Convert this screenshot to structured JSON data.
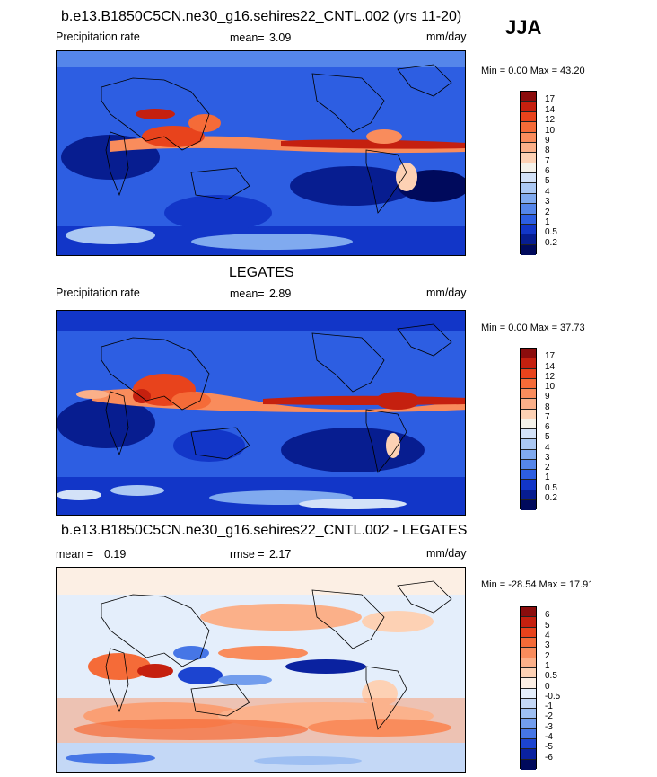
{
  "season": "JJA",
  "panels": [
    {
      "title": "b.e13.B1850C5CN.ne30_g16.sehires22_CNTL.002 (yrs 11-20)",
      "left_label": "Precipitation rate",
      "mean_label": "mean=",
      "mean_value": "3.09",
      "stat2_label": "",
      "stat2_value": "",
      "units": "mm/day",
      "minmax": "Min =   0.00 Max =  43.20",
      "colorbar_labels": [
        "17",
        "14",
        "12",
        "10",
        "9",
        "8",
        "7",
        "6",
        "5",
        "4",
        "3",
        "2",
        "1",
        "0.5",
        "0.2"
      ],
      "colorbar_colors": [
        "#8b0d0d",
        "#c5200f",
        "#e8431c",
        "#f56b38",
        "#f98c5c",
        "#fbb089",
        "#fdd1b4",
        "#f5f2ea",
        "#d3e2f8",
        "#abc8f3",
        "#80aaef",
        "#5586ea",
        "#2d5ee2",
        "#1236c8",
        "#071d90",
        "#000a5c"
      ]
    },
    {
      "title": "LEGATES",
      "left_label": "Precipitation rate",
      "mean_label": "mean=",
      "mean_value": "2.89",
      "stat2_label": "",
      "stat2_value": "",
      "units": "mm/day",
      "minmax": "Min =   0.00 Max =  37.73",
      "colorbar_labels": [
        "17",
        "14",
        "12",
        "10",
        "9",
        "8",
        "7",
        "6",
        "5",
        "4",
        "3",
        "2",
        "1",
        "0.5",
        "0.2"
      ],
      "colorbar_colors": [
        "#8b0d0d",
        "#c5200f",
        "#e8431c",
        "#f56b38",
        "#f98c5c",
        "#fbb089",
        "#fdd1b4",
        "#f5f2ea",
        "#d3e2f8",
        "#abc8f3",
        "#80aaef",
        "#5586ea",
        "#2d5ee2",
        "#1236c8",
        "#071d90",
        "#000a5c"
      ]
    },
    {
      "title": "b.e13.B1850C5CN.ne30_g16.sehires22_CNTL.002 - LEGATES",
      "left_label": "",
      "mean_label": "mean =",
      "mean_value": "0.19",
      "stat2_label": "rmse =",
      "stat2_value": "2.17",
      "units": "mm/day",
      "minmax": "Min = -28.54 Max =  17.91",
      "colorbar_labels": [
        "6",
        "5",
        "4",
        "3",
        "2",
        "1",
        "0.5",
        "0",
        "-0.5",
        "-1",
        "-2",
        "-3",
        "-4",
        "-5",
        "-6"
      ],
      "colorbar_colors": [
        "#8b0d0d",
        "#c5200f",
        "#e8431c",
        "#f56b38",
        "#f98c5c",
        "#fbb089",
        "#fdd1b4",
        "#fcefe4",
        "#e4eefb",
        "#c4d8f6",
        "#9ebff2",
        "#729ded",
        "#4676e6",
        "#1c44d0",
        "#0a22a0",
        "#000a5c"
      ]
    }
  ]
}
